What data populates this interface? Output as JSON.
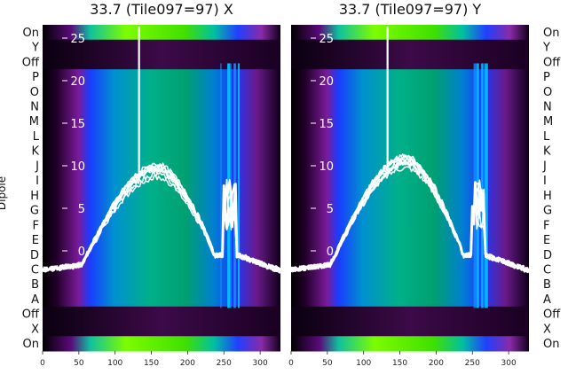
{
  "chart_data": [
    {
      "type": "heatmap",
      "title": "33.7 (Tile097=97) X",
      "ylabel": "Dipole",
      "x_ticks": [
        0,
        50,
        100,
        150,
        200,
        250,
        300
      ],
      "overlay_y_ticks": [
        0,
        5,
        10,
        15,
        20,
        25
      ],
      "xlim": [
        0,
        328
      ],
      "overlay_ylim": [
        -2,
        27
      ]
    },
    {
      "type": "heatmap",
      "title": "33.7 (Tile097=97) Y",
      "ylabel": "",
      "x_ticks": [
        0,
        50,
        100,
        150,
        200,
        250,
        300
      ],
      "overlay_y_ticks": [
        0,
        5,
        10,
        15,
        20,
        25
      ],
      "xlim": [
        0,
        328
      ],
      "overlay_ylim": [
        -2,
        27
      ]
    }
  ],
  "row_labels": [
    "On",
    "Y",
    "Off",
    "P",
    "O",
    "N",
    "M",
    "L",
    "K",
    "J",
    "I",
    "H",
    "G",
    "F",
    "E",
    "D",
    "C",
    "B",
    "A",
    "Off",
    "X",
    "On"
  ],
  "colors": {
    "background": "#000000",
    "band_purple": "#3c0a48",
    "bright": "#7cfc00",
    "mid": "#00b09a",
    "low": "#0a3cff",
    "line": "#ffffff"
  }
}
